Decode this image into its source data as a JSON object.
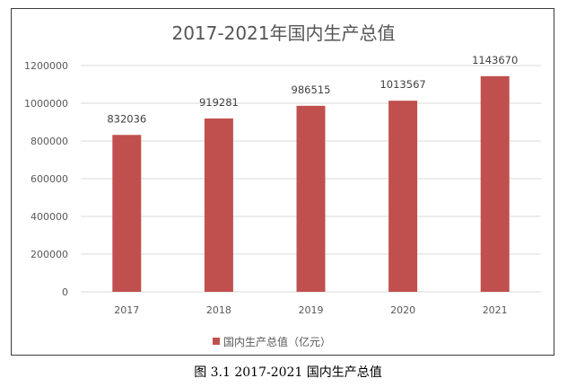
{
  "chart_data": {
    "type": "bar",
    "title": "2017-2021年国内生产总值",
    "categories": [
      "2017",
      "2018",
      "2019",
      "2020",
      "2021"
    ],
    "series": [
      {
        "name": "国内生产总值（亿元）",
        "values": [
          832036,
          919281,
          986515,
          1013567,
          1143670
        ],
        "color": "#C0504D"
      }
    ],
    "yticks": [
      "0",
      "200000",
      "400000",
      "600000",
      "800000",
      "1000000",
      "1200000"
    ],
    "ylim": [
      0,
      1200000
    ],
    "grid": true,
    "legend": "bottom",
    "gridColor": "#D9D9D9"
  },
  "caption": "图 3.1 2017-2021 国内生产总值"
}
